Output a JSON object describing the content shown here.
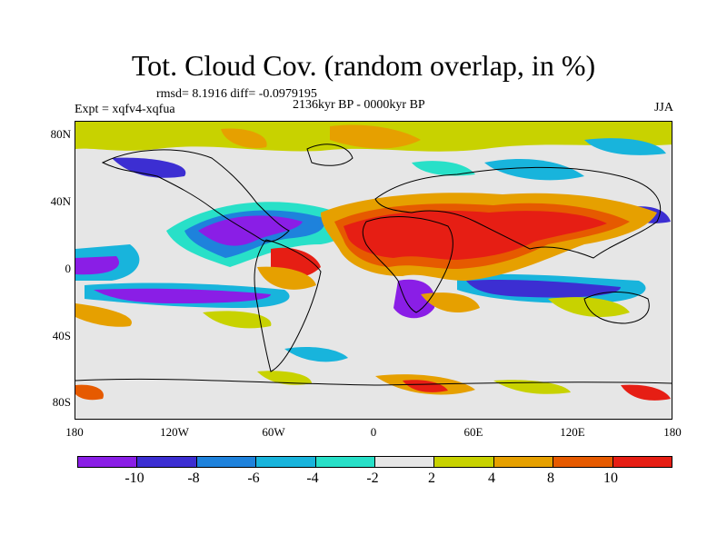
{
  "header": {
    "title": "Tot. Cloud Cov. (random overlap, in %)",
    "stats": "rmsd= 8.1916 diff= -0.0979195",
    "period": "2136kyr BP - 0000kyr BP",
    "experiment": "Expt = xqfv4-xqfua",
    "season": "JJA"
  },
  "map": {
    "lat_labels": [
      "80N",
      "40N",
      "0",
      "40S",
      "80S"
    ],
    "lon_labels": [
      "180",
      "120W",
      "60W",
      "0",
      "60E",
      "120E",
      "180"
    ],
    "lat_range": [
      -90,
      90
    ],
    "lon_range": [
      -180,
      180
    ]
  },
  "colorbar": {
    "labels": [
      "-10",
      "-8",
      "-6",
      "-4",
      "-2",
      "2",
      "4",
      "8",
      "10"
    ],
    "colors": [
      "#8a1ee6",
      "#3c2ed2",
      "#1e82dc",
      "#18b4dc",
      "#28e0c8",
      "#e6e6e6",
      "#c8d200",
      "#e6a000",
      "#e65a00",
      "#e61e14"
    ]
  },
  "chart_data": {
    "type": "heatmap",
    "title": "Tot. Cloud Cov. (random overlap, in %)",
    "subtitle": "2136kyr BP - 0000kyr BP",
    "levels": [
      -10,
      -8,
      -6,
      -4,
      -2,
      2,
      4,
      8,
      10
    ],
    "xlim": [
      -180,
      180
    ],
    "ylim": [
      -90,
      90
    ],
    "xticks": [
      "180",
      "120W",
      "60W",
      "0",
      "60E",
      "120E",
      "180"
    ],
    "yticks": [
      "80N",
      "40N",
      "0",
      "40S",
      "80S"
    ],
    "rmsd": 8.1916,
    "diff": -0.0979195
  }
}
